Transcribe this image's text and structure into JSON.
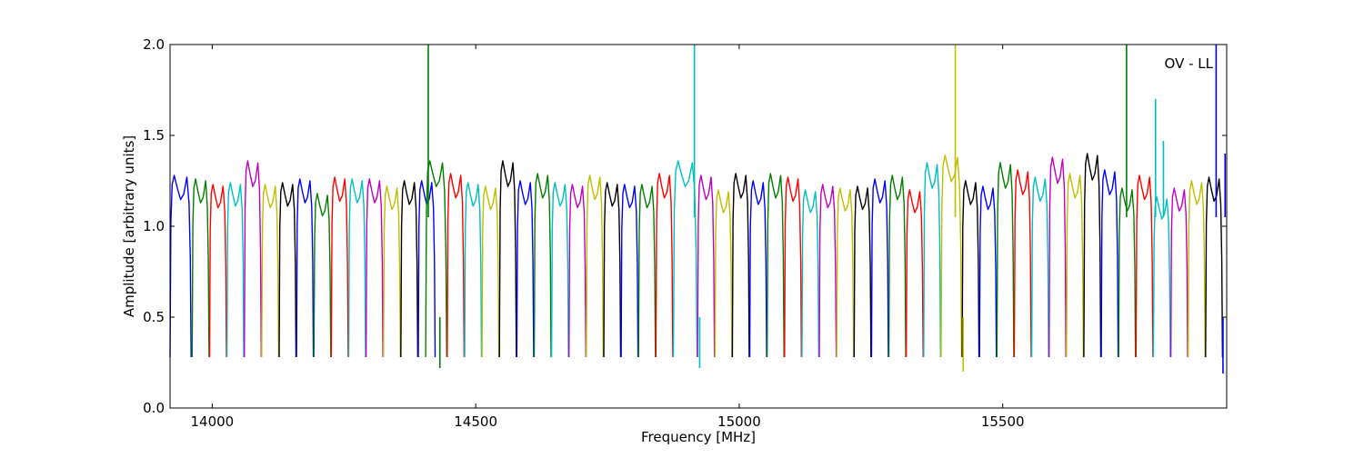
{
  "chart_data": {
    "type": "line",
    "title": "",
    "annotation": "OV - LL",
    "xlabel": "Frequency [MHz]",
    "ylabel": "Amplitude [arbitrary units]",
    "xlim": [
      13920,
      15925
    ],
    "ylim": [
      0,
      2.0
    ],
    "x_ticks": [
      14000,
      14500,
      15000,
      15500
    ],
    "x_tick_labels": [
      "14000",
      "14500",
      "15000",
      "15500"
    ],
    "y_ticks": [
      0,
      0.5,
      1.0,
      1.5,
      2.0
    ],
    "y_tick_labels": [
      "0.0",
      "0.5",
      "1.0",
      "1.5",
      "2.0"
    ],
    "grid": false,
    "legend": "none",
    "band_shape": {
      "x_offsets_fraction": [
        0,
        0.04,
        0.1,
        0.2,
        0.35,
        0.5,
        0.65,
        0.8,
        0.9,
        0.96,
        1
      ],
      "y_profile": [
        0.28,
        1.0,
        1.2,
        1.25,
        1.18,
        1.12,
        1.15,
        1.24,
        1.1,
        0.8,
        0.28
      ]
    },
    "series": [
      {
        "color": "#0000ff",
        "x": [
          13920,
          13960
        ],
        "peak": 1.28
      },
      {
        "color": "#007f00",
        "x": [
          13962,
          13994
        ],
        "peak": 1.26
      },
      {
        "color": "#ff0000",
        "x": [
          13995,
          14027
        ],
        "peak": 1.23
      },
      {
        "color": "#00bfbf",
        "x": [
          14028,
          14060
        ],
        "peak": 1.24
      },
      {
        "color": "#bf00bf",
        "x": [
          14061,
          14093
        ],
        "peak": 1.36
      },
      {
        "color": "#bfbf00",
        "x": [
          14094,
          14126
        ],
        "peak": 1.23
      },
      {
        "color": "#000000",
        "x": [
          14127,
          14159
        ],
        "peak": 1.24
      },
      {
        "color": "#0000ff",
        "x": [
          14160,
          14192
        ],
        "peak": 1.26
      },
      {
        "color": "#007f00",
        "x": [
          14193,
          14225
        ],
        "peak": 1.18
      },
      {
        "color": "#ff0000",
        "x": [
          14226,
          14258
        ],
        "peak": 1.27
      },
      {
        "color": "#00bfbf",
        "x": [
          14259,
          14291
        ],
        "peak": 1.26
      },
      {
        "color": "#bf00bf",
        "x": [
          14292,
          14324
        ],
        "peak": 1.26
      },
      {
        "color": "#bfbf00",
        "x": [
          14325,
          14357
        ],
        "peak": 1.22
      },
      {
        "color": "#000000",
        "x": [
          14358,
          14390
        ],
        "peak": 1.25
      },
      {
        "color": "#0000ff",
        "x": [
          14391,
          14423
        ],
        "peak": 1.25
      },
      {
        "color": "#007f00",
        "x": [
          14405,
          14445
        ],
        "peak": 1.36
      },
      {
        "color": "#ff0000",
        "x": [
          14446,
          14478
        ],
        "peak": 1.29
      },
      {
        "color": "#00bfbf",
        "x": [
          14479,
          14511
        ],
        "peak": 1.24
      },
      {
        "color": "#bfbf00",
        "x": [
          14512,
          14544
        ],
        "peak": 1.22
      },
      {
        "color": "#000000",
        "x": [
          14545,
          14577
        ],
        "peak": 1.36
      },
      {
        "color": "#0000ff",
        "x": [
          14578,
          14610
        ],
        "peak": 1.25
      },
      {
        "color": "#007f00",
        "x": [
          14611,
          14643
        ],
        "peak": 1.29
      },
      {
        "color": "#00bfbf",
        "x": [
          14644,
          14676
        ],
        "peak": 1.24
      },
      {
        "color": "#bf00bf",
        "x": [
          14677,
          14709
        ],
        "peak": 1.23
      },
      {
        "color": "#bfbf00",
        "x": [
          14710,
          14742
        ],
        "peak": 1.28
      },
      {
        "color": "#000000",
        "x": [
          14743,
          14775
        ],
        "peak": 1.24
      },
      {
        "color": "#0000ff",
        "x": [
          14776,
          14808
        ],
        "peak": 1.23
      },
      {
        "color": "#007f00",
        "x": [
          14809,
          14841
        ],
        "peak": 1.23
      },
      {
        "color": "#ff0000",
        "x": [
          14842,
          14874
        ],
        "peak": 1.29
      },
      {
        "color": "#00bfbf",
        "x": [
          14875,
          14920
        ],
        "peak": 1.36
      },
      {
        "color": "#bf00bf",
        "x": [
          14921,
          14953
        ],
        "peak": 1.28
      },
      {
        "color": "#bfbf00",
        "x": [
          14954,
          14986
        ],
        "peak": 1.2
      },
      {
        "color": "#000000",
        "x": [
          14987,
          15019
        ],
        "peak": 1.29
      },
      {
        "color": "#0000ff",
        "x": [
          15020,
          15052
        ],
        "peak": 1.25
      },
      {
        "color": "#007f00",
        "x": [
          15053,
          15085
        ],
        "peak": 1.29
      },
      {
        "color": "#ff0000",
        "x": [
          15086,
          15118
        ],
        "peak": 1.27
      },
      {
        "color": "#00bfbf",
        "x": [
          15119,
          15151
        ],
        "peak": 1.2
      },
      {
        "color": "#bf00bf",
        "x": [
          15152,
          15184
        ],
        "peak": 1.23
      },
      {
        "color": "#bfbf00",
        "x": [
          15185,
          15217
        ],
        "peak": 1.21
      },
      {
        "color": "#000000",
        "x": [
          15218,
          15250
        ],
        "peak": 1.22
      },
      {
        "color": "#0000ff",
        "x": [
          15251,
          15283
        ],
        "peak": 1.26
      },
      {
        "color": "#007f00",
        "x": [
          15284,
          15316
        ],
        "peak": 1.28
      },
      {
        "color": "#ff0000",
        "x": [
          15317,
          15349
        ],
        "peak": 1.2
      },
      {
        "color": "#00bfbf",
        "x": [
          15350,
          15382
        ],
        "peak": 1.35
      },
      {
        "color": "#bfbf00",
        "x": [
          15383,
          15422
        ],
        "peak": 1.39
      },
      {
        "color": "#000000",
        "x": [
          15423,
          15455
        ],
        "peak": 1.25
      },
      {
        "color": "#0000ff",
        "x": [
          15456,
          15488
        ],
        "peak": 1.22
      },
      {
        "color": "#007f00",
        "x": [
          15489,
          15521
        ],
        "peak": 1.35
      },
      {
        "color": "#ff0000",
        "x": [
          15522,
          15554
        ],
        "peak": 1.31
      },
      {
        "color": "#00bfbf",
        "x": [
          15555,
          15587
        ],
        "peak": 1.27
      },
      {
        "color": "#bf00bf",
        "x": [
          15588,
          15620
        ],
        "peak": 1.38
      },
      {
        "color": "#bfbf00",
        "x": [
          15621,
          15653
        ],
        "peak": 1.29
      },
      {
        "color": "#000000",
        "x": [
          15654,
          15686
        ],
        "peak": 1.4
      },
      {
        "color": "#0000ff",
        "x": [
          15687,
          15719
        ],
        "peak": 1.31
      },
      {
        "color": "#007f00",
        "x": [
          15720,
          15752
        ],
        "peak": 1.21
      },
      {
        "color": "#ff0000",
        "x": [
          15753,
          15785
        ],
        "peak": 1.28
      },
      {
        "color": "#00bfbf",
        "x": [
          15786,
          15818
        ],
        "peak": 1.16
      },
      {
        "color": "#bf00bf",
        "x": [
          15819,
          15851
        ],
        "peak": 1.21
      },
      {
        "color": "#bfbf00",
        "x": [
          15852,
          15884
        ],
        "peak": 1.25
      },
      {
        "color": "#000000",
        "x": [
          15885,
          15917
        ],
        "peak": 1.27
      }
    ],
    "spikes": [
      {
        "color": "#007f00",
        "x": 14410,
        "y": 2.0
      },
      {
        "color": "#00bfbf",
        "x": 14915,
        "y": 2.0
      },
      {
        "color": "#bfbf00",
        "x": 15410,
        "y": 2.0
      },
      {
        "color": "#007f00",
        "x": 15735,
        "y": 2.0
      },
      {
        "color": "#00bfbf",
        "x": 15790,
        "y": 1.7
      },
      {
        "color": "#00bfbf",
        "x": 15805,
        "y": 1.47
      },
      {
        "color": "#0000ff",
        "x": 15905,
        "y": 2.0
      },
      {
        "color": "#0000ff",
        "x": 15922,
        "y": 1.4
      }
    ],
    "dips": [
      {
        "color": "#007f00",
        "x": 14432,
        "y": 0.22
      },
      {
        "color": "#00bfbf",
        "x": 14925,
        "y": 0.22
      },
      {
        "color": "#bfbf00",
        "x": 15425,
        "y": 0.2
      },
      {
        "color": "#0000ff",
        "x": 15918,
        "y": 0.19
      }
    ]
  }
}
